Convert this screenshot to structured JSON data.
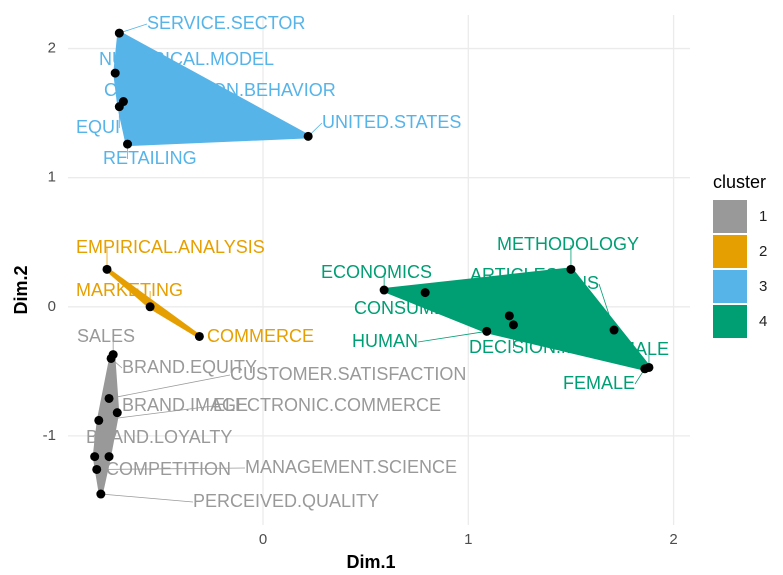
{
  "chart_data": {
    "type": "scatter",
    "xlabel": "Dim.1",
    "ylabel": "Dim.2",
    "xlim": [
      -0.95,
      2.08
    ],
    "ylim": [
      -1.69,
      2.26
    ],
    "xticks": [
      0,
      1,
      2
    ],
    "yticks": [
      -1,
      0,
      1,
      2
    ],
    "grid": true,
    "legend_title": "cluster",
    "legend_position": "right",
    "series": [
      {
        "name": "1",
        "color": "#999999",
        "labels": [
          "SALES",
          "BRAND.EQUITY",
          "CUSTOMER.SATISFACTION",
          "BRAND.IMAGE",
          "ELECTRONIC.COMMERCE",
          "BRAND.LOYALTY",
          "COMPETITION",
          "MANAGEMENT.SCIENCE",
          "PERCEIVED.QUALITY"
        ],
        "x": [
          -0.73,
          -0.74,
          -0.75,
          -0.71,
          -0.8,
          -0.82,
          -0.75,
          -0.81,
          -0.79
        ],
        "values": [
          -0.37,
          -0.4,
          -0.71,
          -0.82,
          -0.88,
          -1.16,
          -1.16,
          -1.26,
          -1.45
        ]
      },
      {
        "name": "2",
        "color": "#E69F00",
        "labels": [
          "EMPIRICAL.ANALYSIS",
          "MARKETING",
          "COMMERCE"
        ],
        "x": [
          -0.76,
          -0.55,
          -0.31
        ],
        "values": [
          0.29,
          0.0,
          -0.23
        ]
      },
      {
        "name": "3",
        "color": "#56B4E9",
        "labels": [
          "SERVICE.SECTOR",
          "NUMERICAL.MODEL",
          "CONSUMPTION.BEHAVIOR",
          "EQUITY",
          "RETAILING",
          "UNITED.STATES"
        ],
        "x": [
          -0.7,
          -0.72,
          -0.68,
          -0.7,
          -0.66,
          0.22
        ],
        "values": [
          2.12,
          1.81,
          1.59,
          1.55,
          1.26,
          1.32
        ]
      },
      {
        "name": "4",
        "color": "#009E73",
        "labels": [
          "METHODOLOGY",
          "ECONOMICS",
          "CONSUMER",
          "ARTICLES",
          "DECISION.MAKING",
          "HUMAN",
          "HUMANS",
          "FEMALE",
          "MALE"
        ],
        "x": [
          1.5,
          0.59,
          0.79,
          1.2,
          1.22,
          1.09,
          1.71,
          1.86,
          1.88
        ],
        "values": [
          0.29,
          0.13,
          0.11,
          -0.07,
          -0.14,
          -0.19,
          -0.18,
          -0.48,
          -0.47
        ]
      }
    ]
  }
}
